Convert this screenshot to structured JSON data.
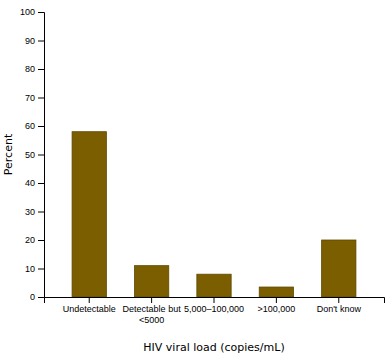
{
  "chart_data": {
    "type": "bar",
    "categories": [
      "Undetectable",
      "Detectable but\n<5000",
      "5,000–100,000",
      ">100,000",
      "Don't know"
    ],
    "values": [
      58,
      11,
      8,
      3.5,
      20
    ],
    "color": "#7B5E00",
    "xlabel": "HIV viral load (copies/mL)",
    "ylabel": "Percent",
    "ylim": [
      0,
      100
    ],
    "yticks": [
      0,
      10,
      20,
      30,
      40,
      50,
      60,
      70,
      80,
      90,
      100
    ],
    "grid": false
  }
}
